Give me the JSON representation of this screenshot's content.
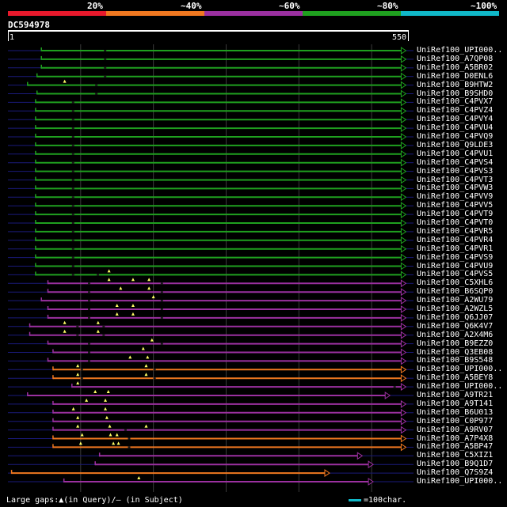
{
  "legend": {
    "labels": [
      "20%",
      "~40%",
      "~60%",
      "~80%",
      "~100%"
    ],
    "colors": [
      "#e8192c",
      "#f07820",
      "#9b30a0",
      "#1fa01f",
      "#10b8c8"
    ]
  },
  "query": {
    "id": "DC594978",
    "start_label": "1",
    "end_label": "550",
    "length": 550
  },
  "hits": [
    {
      "name": "UniRef100_UPI000..",
      "color": "#1fa01f",
      "start": 46,
      "end": 545,
      "dash_start": 0,
      "ticks": [
        132
      ],
      "gaps": []
    },
    {
      "name": "UniRef100_A7QP08",
      "color": "#1fa01f",
      "start": 46,
      "end": 545,
      "dash_start": 0,
      "ticks": [
        132
      ],
      "gaps": []
    },
    {
      "name": "UniRef100_A5BR02",
      "color": "#1fa01f",
      "start": 46,
      "end": 545,
      "dash_start": 0,
      "ticks": [
        132
      ],
      "gaps": []
    },
    {
      "name": "UniRef100_D0ENL6",
      "color": "#1fa01f",
      "start": 40,
      "end": 545,
      "dash_start": 0,
      "ticks": [
        132
      ],
      "gaps": []
    },
    {
      "name": "UniRef100_B9HTW2",
      "color": "#1fa01f",
      "start": 27,
      "end": 545,
      "dash_start": 0,
      "ticks": [
        120
      ],
      "gaps": [
        78
      ]
    },
    {
      "name": "UniRef100_B9SHD0",
      "color": "#1fa01f",
      "start": 40,
      "end": 545,
      "dash_start": 0,
      "ticks": [
        120
      ],
      "gaps": []
    },
    {
      "name": "UniRef100_C4PVX7",
      "color": "#1fa01f",
      "start": 38,
      "end": 545,
      "dash_start": 0,
      "ticks": [
        88
      ],
      "gaps": []
    },
    {
      "name": "UniRef100_C4PVZ4",
      "color": "#1fa01f",
      "start": 38,
      "end": 545,
      "dash_start": 0,
      "ticks": [
        88
      ],
      "gaps": []
    },
    {
      "name": "UniRef100_C4PVY4",
      "color": "#1fa01f",
      "start": 38,
      "end": 545,
      "dash_start": 0,
      "ticks": [
        88
      ],
      "gaps": []
    },
    {
      "name": "UniRef100_C4PVU4",
      "color": "#1fa01f",
      "start": 38,
      "end": 545,
      "dash_start": 0,
      "ticks": [
        88
      ],
      "gaps": []
    },
    {
      "name": "UniRef100_C4PVQ9",
      "color": "#1fa01f",
      "start": 38,
      "end": 545,
      "dash_start": 0,
      "ticks": [
        88
      ],
      "gaps": []
    },
    {
      "name": "UniRef100_Q9LDE3",
      "color": "#1fa01f",
      "start": 38,
      "end": 545,
      "dash_start": 0,
      "ticks": [
        88
      ],
      "gaps": []
    },
    {
      "name": "UniRef100_C4PVU1",
      "color": "#1fa01f",
      "start": 38,
      "end": 545,
      "dash_start": 0,
      "ticks": [
        88
      ],
      "gaps": []
    },
    {
      "name": "UniRef100_C4PVS4",
      "color": "#1fa01f",
      "start": 38,
      "end": 545,
      "dash_start": 0,
      "ticks": [
        88
      ],
      "gaps": []
    },
    {
      "name": "UniRef100_C4PVS3",
      "color": "#1fa01f",
      "start": 38,
      "end": 545,
      "dash_start": 0,
      "ticks": [
        88
      ],
      "gaps": []
    },
    {
      "name": "UniRef100_C4PVT3",
      "color": "#1fa01f",
      "start": 38,
      "end": 545,
      "dash_start": 0,
      "ticks": [
        88
      ],
      "gaps": []
    },
    {
      "name": "UniRef100_C4PVW3",
      "color": "#1fa01f",
      "start": 38,
      "end": 545,
      "dash_start": 0,
      "ticks": [
        88
      ],
      "gaps": []
    },
    {
      "name": "UniRef100_C4PVV9",
      "color": "#1fa01f",
      "start": 38,
      "end": 545,
      "dash_start": 0,
      "ticks": [
        88
      ],
      "gaps": []
    },
    {
      "name": "UniRef100_C4PVV5",
      "color": "#1fa01f",
      "start": 38,
      "end": 545,
      "dash_start": 0,
      "ticks": [
        88
      ],
      "gaps": []
    },
    {
      "name": "UniRef100_C4PVT9",
      "color": "#1fa01f",
      "start": 38,
      "end": 545,
      "dash_start": 0,
      "ticks": [
        88
      ],
      "gaps": []
    },
    {
      "name": "UniRef100_C4PVT0",
      "color": "#1fa01f",
      "start": 38,
      "end": 545,
      "dash_start": 0,
      "ticks": [
        88
      ],
      "gaps": []
    },
    {
      "name": "UniRef100_C4PVR5",
      "color": "#1fa01f",
      "start": 38,
      "end": 545,
      "dash_start": 0,
      "ticks": [
        88
      ],
      "gaps": []
    },
    {
      "name": "UniRef100_C4PVR4",
      "color": "#1fa01f",
      "start": 38,
      "end": 545,
      "dash_start": 0,
      "ticks": [
        88
      ],
      "gaps": []
    },
    {
      "name": "UniRef100_C4PVR1",
      "color": "#1fa01f",
      "start": 38,
      "end": 545,
      "dash_start": 0,
      "ticks": [
        88
      ],
      "gaps": []
    },
    {
      "name": "UniRef100_C4PVS9",
      "color": "#1fa01f",
      "start": 38,
      "end": 545,
      "dash_start": 0,
      "ticks": [
        88
      ],
      "gaps": []
    },
    {
      "name": "UniRef100_C4PVU9",
      "color": "#1fa01f",
      "start": 38,
      "end": 545,
      "dash_start": 0,
      "ticks": [
        88
      ],
      "gaps": []
    },
    {
      "name": "UniRef100_C4PVS5",
      "color": "#1fa01f",
      "start": 38,
      "end": 545,
      "dash_start": 0,
      "ticks": [
        88,
        122
      ],
      "gaps": [
        139
      ]
    },
    {
      "name": "UniRef100_C5XHL6",
      "color": "#9b30a0",
      "start": 55,
      "end": 545,
      "dash_start": 0,
      "ticks": [
        110,
        210
      ],
      "gaps": [
        139,
        172,
        194
      ]
    },
    {
      "name": "UniRef100_B6SQP0",
      "color": "#9b30a0",
      "start": 55,
      "end": 545,
      "dash_start": 0,
      "ticks": [
        110,
        210
      ],
      "gaps": [
        155,
        194
      ]
    },
    {
      "name": "UniRef100_A2WU79",
      "color": "#9b30a0",
      "start": 46,
      "end": 545,
      "dash_start": 0,
      "ticks": [
        110,
        210
      ],
      "gaps": [
        200
      ]
    },
    {
      "name": "UniRef100_A2WZL5",
      "color": "#9b30a0",
      "start": 55,
      "end": 545,
      "dash_start": 0,
      "ticks": [
        110,
        210
      ],
      "gaps": [
        150,
        172
      ]
    },
    {
      "name": "UniRef100_Q6JJ07",
      "color": "#9b30a0",
      "start": 55,
      "end": 545,
      "dash_start": 0,
      "ticks": [
        110,
        210
      ],
      "gaps": [
        150,
        172
      ]
    },
    {
      "name": "UniRef100_Q6K4V7",
      "color": "#9b30a0",
      "start": 30,
      "end": 545,
      "dash_start": 0,
      "ticks": [
        94,
        130
      ],
      "gaps": [
        78,
        124
      ]
    },
    {
      "name": "UniRef100_A2X4M6",
      "color": "#9b30a0",
      "start": 30,
      "end": 545,
      "dash_start": 0,
      "ticks": [
        94,
        130
      ],
      "gaps": [
        78,
        124
      ]
    },
    {
      "name": "UniRef100_B9EZZ0",
      "color": "#9b30a0",
      "start": 55,
      "end": 545,
      "dash_start": 0,
      "ticks": [
        110,
        210
      ],
      "gaps": [
        198
      ]
    },
    {
      "name": "UniRef100_Q3EB08",
      "color": "#9b30a0",
      "start": 62,
      "end": 545,
      "dash_start": 0,
      "ticks": [
        110
      ],
      "gaps": [
        186
      ]
    },
    {
      "name": "UniRef100_B9S548",
      "color": "#9b30a0",
      "start": 55,
      "end": 545,
      "dash_start": 0,
      "ticks": [
        110
      ],
      "gaps": [
        168,
        192
      ]
    },
    {
      "name": "UniRef100_UPI000..",
      "color": "#f07820",
      "start": 62,
      "end": 545,
      "dash_start": 0,
      "ticks": [
        100,
        200
      ],
      "gaps": [
        96,
        190
      ]
    },
    {
      "name": "UniRef100_A5BEY8",
      "color": "#f07820",
      "start": 62,
      "end": 545,
      "dash_start": 0,
      "ticks": [
        100,
        200
      ],
      "gaps": [
        96,
        190
      ]
    },
    {
      "name": "UniRef100_UPI000..",
      "color": "#9b30a0",
      "start": 88,
      "end": 545,
      "dash_start": 0,
      "ticks": [
        530
      ],
      "gaps": [
        96
      ]
    },
    {
      "name": "UniRef100_A9TR21",
      "color": "#9b30a0",
      "start": 27,
      "end": 523,
      "dash_start": 0,
      "ticks": [],
      "gaps": [
        120,
        138
      ]
    },
    {
      "name": "UniRef100_A9T141",
      "color": "#9b30a0",
      "start": 62,
      "end": 545,
      "dash_start": 0,
      "ticks": [],
      "gaps": [
        108,
        134
      ]
    },
    {
      "name": "UniRef100_B6U013",
      "color": "#9b30a0",
      "start": 62,
      "end": 545,
      "dash_start": 0,
      "ticks": [],
      "gaps": [
        90,
        134
      ]
    },
    {
      "name": "UniRef100_C0P977",
      "color": "#9b30a0",
      "start": 62,
      "end": 545,
      "dash_start": 0,
      "ticks": [],
      "gaps": [
        96,
        136
      ]
    },
    {
      "name": "UniRef100_A9RV07",
      "color": "#9b30a0",
      "start": 62,
      "end": 545,
      "dash_start": 0,
      "ticks": [
        160
      ],
      "gaps": [
        96,
        140,
        190
      ]
    },
    {
      "name": "UniRef100_A7P4X8",
      "color": "#f07820",
      "start": 62,
      "end": 545,
      "dash_start": 0,
      "ticks": [
        165
      ],
      "gaps": [
        102,
        141,
        150
      ]
    },
    {
      "name": "UniRef100_A5BP47",
      "color": "#f07820",
      "start": 62,
      "end": 545,
      "dash_start": 0,
      "ticks": [
        165
      ],
      "gaps": [
        100,
        145,
        152
      ]
    },
    {
      "name": "UniRef100_C5XIZ1",
      "color": "#9b30a0",
      "start": 126,
      "end": 485,
      "dash_start": 0,
      "ticks": [],
      "gaps": []
    },
    {
      "name": "UniRef100_B9Q1D7",
      "color": "#9b30a0",
      "start": 120,
      "end": 500,
      "dash_start": 0,
      "ticks": [],
      "gaps": []
    },
    {
      "name": "UniRef100_Q7S9Z4",
      "color": "#f07820",
      "start": 5,
      "end": 440,
      "dash_start": 0,
      "ticks": [],
      "gaps": []
    },
    {
      "name": "UniRef100_UPI000..",
      "color": "#9b30a0",
      "start": 77,
      "end": 500,
      "dash_start": 0,
      "ticks": [],
      "gaps": [
        180
      ]
    }
  ],
  "footer": {
    "gaps_text": "Large gaps:▲(in Query)/– (in Subject)",
    "scale_text": "=100char."
  }
}
